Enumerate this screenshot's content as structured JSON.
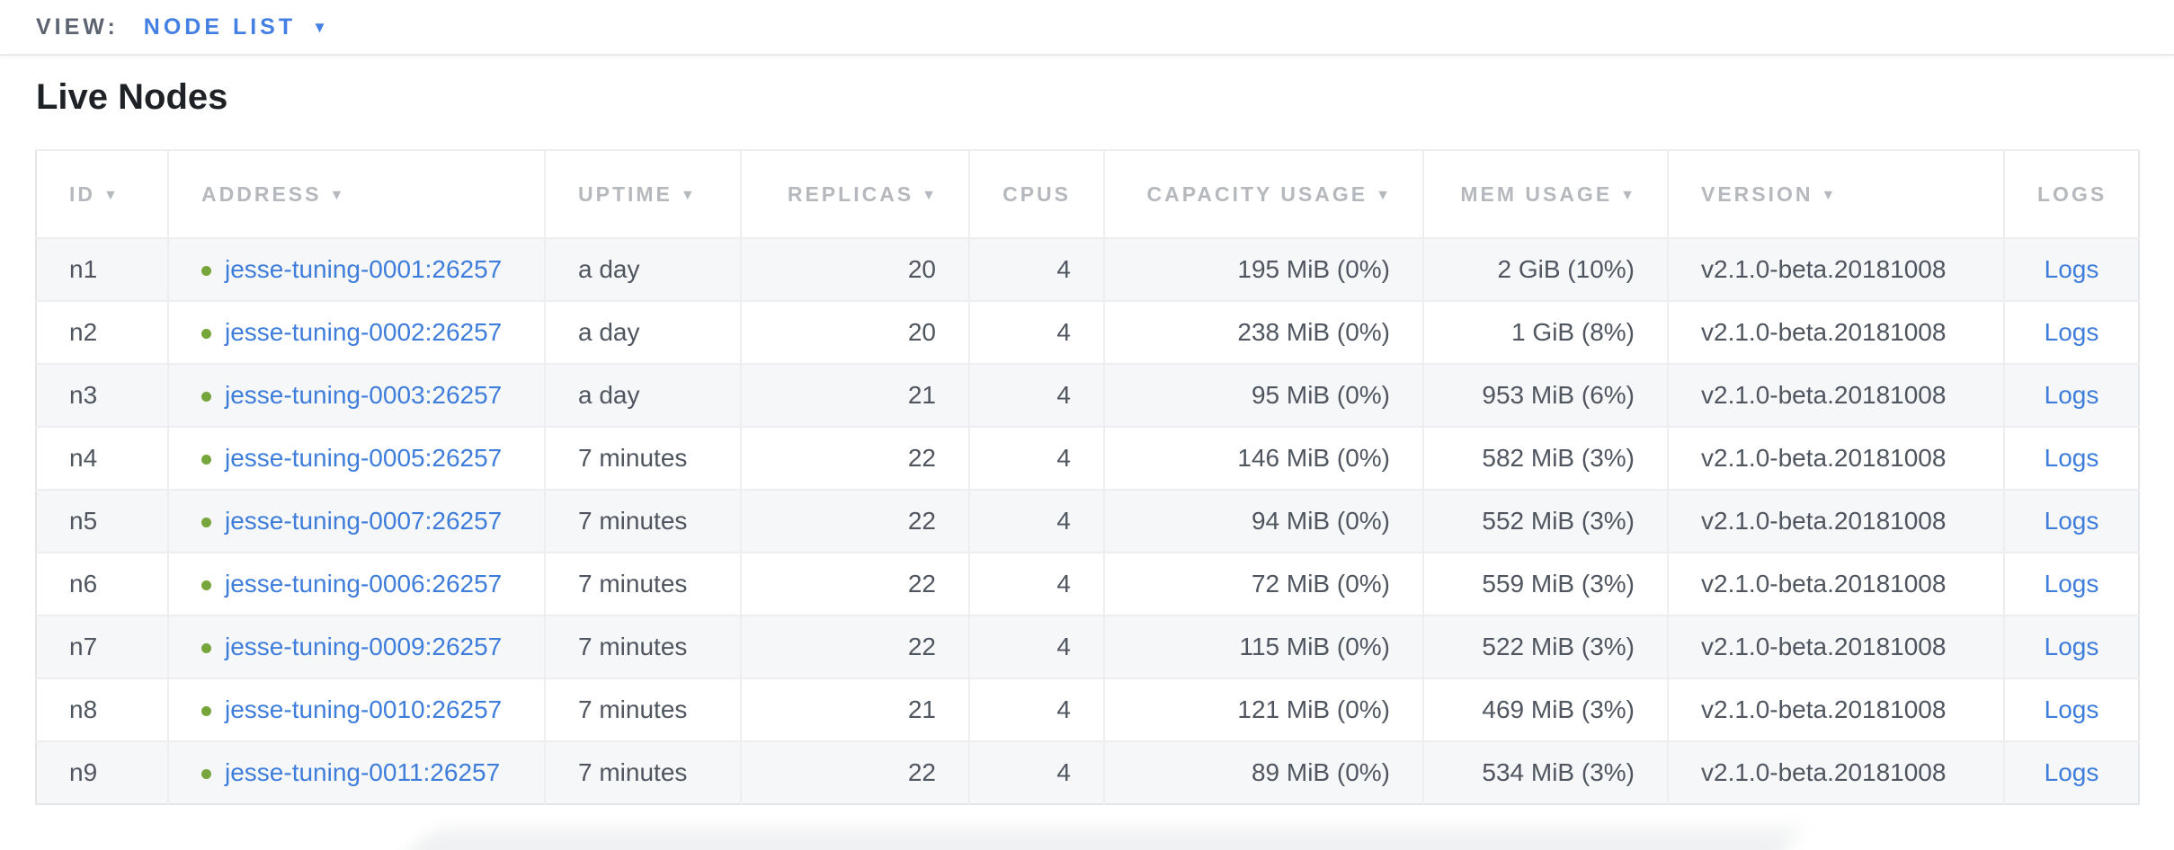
{
  "view_bar": {
    "label": "VIEW:",
    "selected": "NODE LIST"
  },
  "page": {
    "title": "Live Nodes"
  },
  "icons": {
    "sort_desc": "▼",
    "dropdown": "▼"
  },
  "colors": {
    "accent_blue": "#4480e4",
    "link_blue": "#3f7ddb",
    "live_green": "#76a53c"
  },
  "table": {
    "columns": [
      {
        "key": "id",
        "label": "ID",
        "sortable": true
      },
      {
        "key": "address",
        "label": "ADDRESS",
        "sortable": true
      },
      {
        "key": "uptime",
        "label": "UPTIME",
        "sortable": true
      },
      {
        "key": "replicas",
        "label": "REPLICAS",
        "sortable": true
      },
      {
        "key": "cpus",
        "label": "CPUS",
        "sortable": false
      },
      {
        "key": "capacity",
        "label": "CAPACITY USAGE",
        "sortable": true
      },
      {
        "key": "mem",
        "label": "MEM USAGE",
        "sortable": true
      },
      {
        "key": "version",
        "label": "VERSION",
        "sortable": true
      },
      {
        "key": "logs",
        "label": "LOGS",
        "sortable": false
      }
    ],
    "rows": [
      {
        "id": "n1",
        "status": "live",
        "address": "jesse-tuning-0001:26257",
        "uptime": "a day",
        "replicas": "20",
        "cpus": "4",
        "capacity": "195 MiB (0%)",
        "mem": "2 GiB (10%)",
        "version": "v2.1.0-beta.20181008",
        "logs": "Logs"
      },
      {
        "id": "n2",
        "status": "live",
        "address": "jesse-tuning-0002:26257",
        "uptime": "a day",
        "replicas": "20",
        "cpus": "4",
        "capacity": "238 MiB (0%)",
        "mem": "1 GiB (8%)",
        "version": "v2.1.0-beta.20181008",
        "logs": "Logs"
      },
      {
        "id": "n3",
        "status": "live",
        "address": "jesse-tuning-0003:26257",
        "uptime": "a day",
        "replicas": "21",
        "cpus": "4",
        "capacity": "95 MiB (0%)",
        "mem": "953 MiB (6%)",
        "version": "v2.1.0-beta.20181008",
        "logs": "Logs"
      },
      {
        "id": "n4",
        "status": "live",
        "address": "jesse-tuning-0005:26257",
        "uptime": "7 minutes",
        "replicas": "22",
        "cpus": "4",
        "capacity": "146 MiB (0%)",
        "mem": "582 MiB (3%)",
        "version": "v2.1.0-beta.20181008",
        "logs": "Logs"
      },
      {
        "id": "n5",
        "status": "live",
        "address": "jesse-tuning-0007:26257",
        "uptime": "7 minutes",
        "replicas": "22",
        "cpus": "4",
        "capacity": "94 MiB (0%)",
        "mem": "552 MiB (3%)",
        "version": "v2.1.0-beta.20181008",
        "logs": "Logs"
      },
      {
        "id": "n6",
        "status": "live",
        "address": "jesse-tuning-0006:26257",
        "uptime": "7 minutes",
        "replicas": "22",
        "cpus": "4",
        "capacity": "72 MiB (0%)",
        "mem": "559 MiB (3%)",
        "version": "v2.1.0-beta.20181008",
        "logs": "Logs"
      },
      {
        "id": "n7",
        "status": "live",
        "address": "jesse-tuning-0009:26257",
        "uptime": "7 minutes",
        "replicas": "22",
        "cpus": "4",
        "capacity": "115 MiB (0%)",
        "mem": "522 MiB (3%)",
        "version": "v2.1.0-beta.20181008",
        "logs": "Logs"
      },
      {
        "id": "n8",
        "status": "live",
        "address": "jesse-tuning-0010:26257",
        "uptime": "7 minutes",
        "replicas": "21",
        "cpus": "4",
        "capacity": "121 MiB (0%)",
        "mem": "469 MiB (3%)",
        "version": "v2.1.0-beta.20181008",
        "logs": "Logs"
      },
      {
        "id": "n9",
        "status": "live",
        "address": "jesse-tuning-0011:26257",
        "uptime": "7 minutes",
        "replicas": "22",
        "cpus": "4",
        "capacity": "89 MiB (0%)",
        "mem": "534 MiB (3%)",
        "version": "v2.1.0-beta.20181008",
        "logs": "Logs"
      }
    ]
  }
}
